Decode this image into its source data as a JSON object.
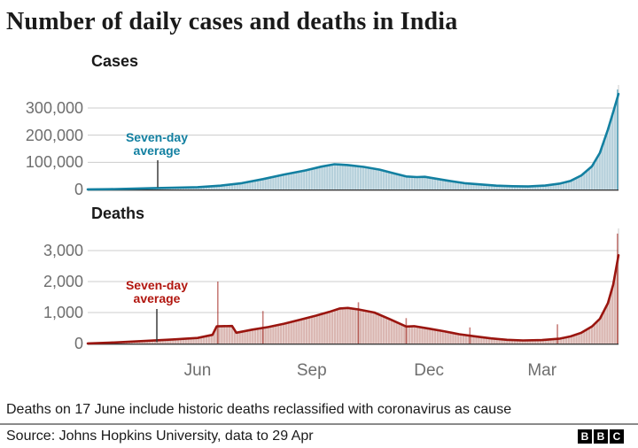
{
  "title": "Number of daily cases and deaths in India",
  "note": "Deaths on 17 June include historic deaths reclassified with coronavirus as cause",
  "source": "Source: Johns Hopkins University, data to 29 Apr",
  "logo": {
    "letters": [
      "B",
      "B",
      "C"
    ]
  },
  "chart_data": [
    {
      "type": "area",
      "title": "Cases",
      "ylabel": "",
      "ylim": [
        0,
        390000
      ],
      "grid": true,
      "yticks": [
        {
          "label": "300,000",
          "value": 300000
        },
        {
          "label": "200,000",
          "value": 200000
        },
        {
          "label": "100,000",
          "value": 100000
        },
        {
          "label": "0",
          "value": 0
        }
      ],
      "annotation": {
        "line1": "Seven-day",
        "line2": "average"
      },
      "colors": {
        "line": "#1380A1",
        "fill": "#b4cfda",
        "annotation": "#1380A1"
      },
      "series": [
        {
          "name": "Seven-day average",
          "points": [
            [
              0.0,
              200
            ],
            [
              0.04,
              900
            ],
            [
              0.08,
              2500
            ],
            [
              0.12,
              4500
            ],
            [
              0.16,
              6500
            ],
            [
              0.207,
              8600
            ],
            [
              0.25,
              14000
            ],
            [
              0.29,
              23000
            ],
            [
              0.33,
              38000
            ],
            [
              0.37,
              55000
            ],
            [
              0.41,
              70000
            ],
            [
              0.44,
              84000
            ],
            [
              0.465,
              93000
            ],
            [
              0.49,
              90000
            ],
            [
              0.52,
              83000
            ],
            [
              0.55,
              73000
            ],
            [
              0.58,
              58000
            ],
            [
              0.6,
              48000
            ],
            [
              0.62,
              45500
            ],
            [
              0.635,
              46500
            ],
            [
              0.655,
              40000
            ],
            [
              0.68,
              32000
            ],
            [
              0.71,
              23000
            ],
            [
              0.74,
              18500
            ],
            [
              0.77,
              14000
            ],
            [
              0.8,
              12000
            ],
            [
              0.83,
              11200
            ],
            [
              0.862,
              14500
            ],
            [
              0.89,
              22000
            ],
            [
              0.91,
              32000
            ],
            [
              0.93,
              52000
            ],
            [
              0.95,
              85000
            ],
            [
              0.965,
              135000
            ],
            [
              0.98,
              220000
            ],
            [
              0.99,
              285000
            ],
            [
              1.0,
              352000
            ]
          ]
        }
      ],
      "daily_bar_spikes": [
        [
          0.998,
          368000
        ]
      ]
    },
    {
      "type": "area",
      "title": "Deaths",
      "ylabel": "",
      "ylim": [
        0,
        3700
      ],
      "grid": true,
      "yticks": [
        {
          "label": "3,000",
          "value": 3000
        },
        {
          "label": "2,000",
          "value": 2000
        },
        {
          "label": "1,000",
          "value": 1000
        },
        {
          "label": "0",
          "value": 0
        }
      ],
      "annotation": {
        "line1": "Seven-day",
        "line2": "average"
      },
      "colors": {
        "line": "#9a150f",
        "fill": "#d9b5b0",
        "annotation": "#b1160f"
      },
      "series": [
        {
          "name": "Seven-day average",
          "points": [
            [
              0.0,
              3
            ],
            [
              0.04,
              25
            ],
            [
              0.08,
              60
            ],
            [
              0.12,
              95
            ],
            [
              0.16,
              130
            ],
            [
              0.207,
              180
            ],
            [
              0.235,
              280
            ],
            [
              0.243,
              555
            ],
            [
              0.272,
              565
            ],
            [
              0.28,
              350
            ],
            [
              0.31,
              450
            ],
            [
              0.34,
              530
            ],
            [
              0.37,
              640
            ],
            [
              0.4,
              770
            ],
            [
              0.43,
              900
            ],
            [
              0.455,
              1020
            ],
            [
              0.475,
              1130
            ],
            [
              0.49,
              1150
            ],
            [
              0.51,
              1100
            ],
            [
              0.54,
              1000
            ],
            [
              0.57,
              780
            ],
            [
              0.6,
              550
            ],
            [
              0.615,
              560
            ],
            [
              0.643,
              480
            ],
            [
              0.67,
              400
            ],
            [
              0.7,
              300
            ],
            [
              0.73,
              230
            ],
            [
              0.76,
              165
            ],
            [
              0.79,
              120
            ],
            [
              0.82,
              100
            ],
            [
              0.856,
              110
            ],
            [
              0.89,
              160
            ],
            [
              0.91,
              230
            ],
            [
              0.93,
              350
            ],
            [
              0.95,
              550
            ],
            [
              0.965,
              800
            ],
            [
              0.98,
              1300
            ],
            [
              0.99,
              1900
            ],
            [
              1.0,
              2850
            ]
          ]
        }
      ],
      "daily_bar_spikes": [
        [
          0.245,
          2000
        ],
        [
          0.33,
          1050
        ],
        [
          0.51,
          1330
        ],
        [
          0.6,
          820
        ],
        [
          0.72,
          520
        ],
        [
          0.885,
          620
        ],
        [
          0.998,
          3550
        ]
      ],
      "x_axis": {
        "labels": [
          "Jun",
          "Sep",
          "Dec",
          "Mar"
        ],
        "fractions": [
          0.207,
          0.422,
          0.643,
          0.856
        ]
      }
    }
  ]
}
